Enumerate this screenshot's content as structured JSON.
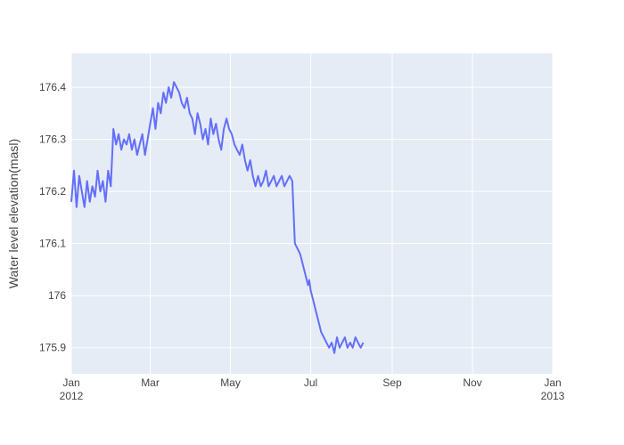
{
  "chart_data": {
    "type": "line",
    "title": "",
    "xlabel": "",
    "ylabel": "Water level elevation(masl)",
    "x_range": [
      "2012-01-01",
      "2013-01-01"
    ],
    "ylim": [
      175.85,
      176.465
    ],
    "grid": true,
    "legend": "none",
    "colors": {
      "line": "#636efa",
      "plot_bg": "#e5ecf6",
      "grid": "#ffffff",
      "text": "#444444"
    },
    "x_ticks": [
      {
        "date": "2012-01-01",
        "label": "Jan",
        "sublabel": "2012"
      },
      {
        "date": "2012-03-01",
        "label": "Mar",
        "sublabel": ""
      },
      {
        "date": "2012-05-01",
        "label": "May",
        "sublabel": ""
      },
      {
        "date": "2012-07-01",
        "label": "Jul",
        "sublabel": ""
      },
      {
        "date": "2012-09-01",
        "label": "Sep",
        "sublabel": ""
      },
      {
        "date": "2012-11-01",
        "label": "Nov",
        "sublabel": ""
      },
      {
        "date": "2013-01-01",
        "label": "Jan",
        "sublabel": "2013"
      }
    ],
    "y_ticks": [
      {
        "value": 175.9,
        "label": "175.9"
      },
      {
        "value": 176.0,
        "label": "176"
      },
      {
        "value": 176.1,
        "label": "176.1"
      },
      {
        "value": 176.2,
        "label": "176.2"
      },
      {
        "value": 176.3,
        "label": "176.3"
      },
      {
        "value": 176.4,
        "label": "176.4"
      }
    ],
    "series": [
      {
        "x": [
          "2012-01-01",
          "2012-01-03",
          "2012-01-05",
          "2012-01-07",
          "2012-01-09",
          "2012-01-11",
          "2012-01-13",
          "2012-01-15",
          "2012-01-17",
          "2012-01-19",
          "2012-01-21",
          "2012-01-23",
          "2012-01-25",
          "2012-01-27",
          "2012-01-29",
          "2012-01-31",
          "2012-02-02",
          "2012-02-04",
          "2012-02-06",
          "2012-02-08",
          "2012-02-10",
          "2012-02-12",
          "2012-02-14",
          "2012-02-16",
          "2012-02-18",
          "2012-02-20",
          "2012-02-22",
          "2012-02-24",
          "2012-02-26",
          "2012-02-28",
          "2012-03-01",
          "2012-03-03",
          "2012-03-05",
          "2012-03-07",
          "2012-03-09",
          "2012-03-11",
          "2012-03-13",
          "2012-03-15",
          "2012-03-17",
          "2012-03-19",
          "2012-03-21",
          "2012-03-23",
          "2012-03-25",
          "2012-03-27",
          "2012-03-29",
          "2012-03-31",
          "2012-04-02",
          "2012-04-04",
          "2012-04-06",
          "2012-04-08",
          "2012-04-10",
          "2012-04-12",
          "2012-04-14",
          "2012-04-16",
          "2012-04-18",
          "2012-04-20",
          "2012-04-22",
          "2012-04-24",
          "2012-04-26",
          "2012-04-28",
          "2012-04-30",
          "2012-05-02",
          "2012-05-04",
          "2012-05-06",
          "2012-05-08",
          "2012-05-10",
          "2012-05-12",
          "2012-05-14",
          "2012-05-16",
          "2012-05-18",
          "2012-05-20",
          "2012-05-22",
          "2012-05-24",
          "2012-05-26",
          "2012-05-28",
          "2012-05-30",
          "2012-06-01",
          "2012-06-03",
          "2012-06-05",
          "2012-06-07",
          "2012-06-09",
          "2012-06-11",
          "2012-06-13",
          "2012-06-15",
          "2012-06-17",
          "2012-06-19",
          "2012-06-21",
          "2012-06-23",
          "2012-06-25",
          "2012-06-27",
          "2012-06-29",
          "2012-06-30",
          "2012-07-01",
          "2012-07-03",
          "2012-07-05",
          "2012-07-07",
          "2012-07-09",
          "2012-07-11",
          "2012-07-13",
          "2012-07-15",
          "2012-07-17",
          "2012-07-19",
          "2012-07-21",
          "2012-07-23",
          "2012-07-25",
          "2012-07-27",
          "2012-07-29",
          "2012-07-31",
          "2012-08-02",
          "2012-08-04",
          "2012-08-06",
          "2012-08-08",
          "2012-08-10"
        ],
        "y": [
          176.18,
          176.24,
          176.17,
          176.23,
          176.2,
          176.17,
          176.22,
          176.18,
          176.21,
          176.19,
          176.24,
          176.2,
          176.22,
          176.18,
          176.24,
          176.21,
          176.32,
          176.29,
          176.31,
          176.28,
          176.3,
          176.29,
          176.31,
          176.28,
          176.3,
          176.27,
          176.29,
          176.31,
          176.27,
          176.3,
          176.33,
          176.36,
          176.32,
          176.37,
          176.35,
          176.39,
          176.37,
          176.4,
          176.38,
          176.41,
          176.4,
          176.39,
          176.37,
          176.36,
          176.38,
          176.35,
          176.34,
          176.31,
          176.35,
          176.33,
          176.3,
          176.32,
          176.29,
          176.34,
          176.31,
          176.33,
          176.3,
          176.28,
          176.32,
          176.34,
          176.32,
          176.31,
          176.29,
          176.28,
          176.27,
          176.29,
          176.26,
          176.24,
          176.26,
          176.23,
          176.21,
          176.23,
          176.21,
          176.22,
          176.24,
          176.21,
          176.22,
          176.23,
          176.21,
          176.22,
          176.23,
          176.21,
          176.22,
          176.23,
          176.22,
          176.1,
          176.09,
          176.08,
          176.06,
          176.04,
          176.02,
          176.03,
          176.01,
          175.99,
          175.97,
          175.95,
          175.93,
          175.92,
          175.91,
          175.9,
          175.91,
          175.89,
          175.92,
          175.9,
          175.91,
          175.92,
          175.9,
          175.91,
          175.9,
          175.92,
          175.91,
          175.9,
          175.91
        ]
      }
    ]
  }
}
